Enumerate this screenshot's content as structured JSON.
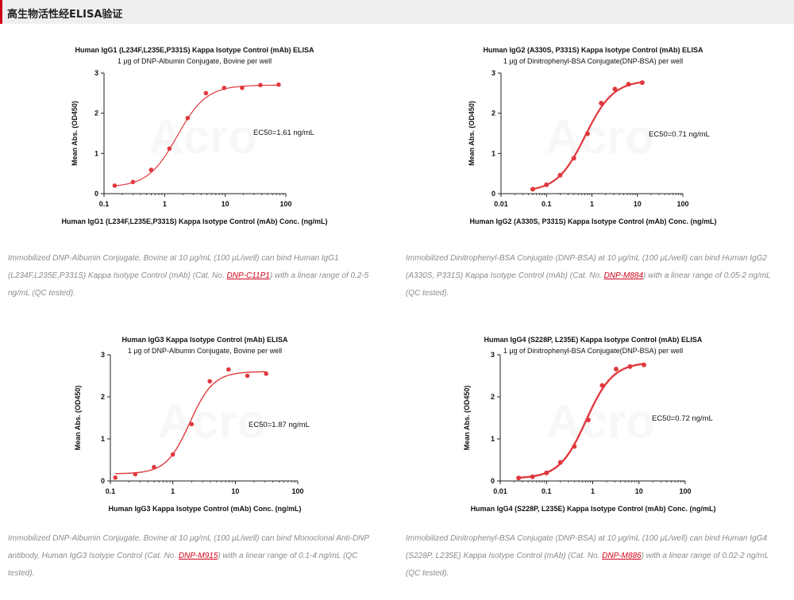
{
  "header": {
    "title": "高生物活性经ELISA验证"
  },
  "theme": {
    "accent": "#d0021b",
    "curve": "#e0393e",
    "axis": "#222222",
    "caption_text": "#8c8c8c",
    "link": "#d0021b"
  },
  "chart_data": [
    {
      "type": "scatter",
      "title": "Human IgG1 (L234F,L235E,P331S) Kappa Isotype Control (mAb) ELISA",
      "subtitle": "1 μg of DNP-Albumin Conjugate, Bovine per well",
      "xlabel": "Human IgG1 (L234F,L235E,P331S) Kappa Isotype Control (mAb) Conc. (ng/mL)",
      "ylabel": "Mean Abs. (OD450)",
      "x_scale": "log",
      "xlim": [
        0.1,
        100
      ],
      "ylim": [
        0,
        3
      ],
      "x_ticks": [
        "0.1",
        "1",
        "10",
        "100"
      ],
      "y_ticks": [
        "0",
        "1",
        "2",
        "3"
      ],
      "annotation": "EC50=1.61 ng/mL",
      "watermark": "Acro",
      "fit": {
        "bottom": 0.16,
        "top": 2.7,
        "ec50": 1.61,
        "hill": 1.8
      },
      "points": [
        {
          "x": 0.15,
          "y": 0.2
        },
        {
          "x": 0.3,
          "y": 0.29
        },
        {
          "x": 0.6,
          "y": 0.59
        },
        {
          "x": 1.2,
          "y": 1.12
        },
        {
          "x": 2.4,
          "y": 1.88
        },
        {
          "x": 4.8,
          "y": 2.5
        },
        {
          "x": 9.6,
          "y": 2.63
        },
        {
          "x": 19,
          "y": 2.63
        },
        {
          "x": 38,
          "y": 2.7
        },
        {
          "x": 76,
          "y": 2.71
        }
      ]
    },
    {
      "type": "scatter",
      "title": "Human IgG2 (A330S, P331S) Kappa Isotype Control (mAb) ELISA",
      "subtitle": "1 μg of Dinitrophenyl-BSA Conjugate(DNP-BSA) per well",
      "xlabel": "Human IgG2 (A330S, P331S) Kappa Isotype Control (mAb) Conc. (ng/mL)",
      "ylabel": "Mean Abs. (OD450)",
      "x_scale": "log",
      "xlim": [
        0.01,
        100
      ],
      "ylim": [
        0,
        3
      ],
      "x_ticks": [
        "0.01",
        "0.1",
        "1",
        "10",
        "100"
      ],
      "y_ticks": [
        "0",
        "1",
        "2",
        "3"
      ],
      "annotation": "EC50=0.71 ng/mL",
      "watermark": "Acro",
      "fit": {
        "bottom": 0.05,
        "top": 2.82,
        "ec50": 0.71,
        "hill": 1.4
      },
      "points": [
        {
          "x": 0.05,
          "y": 0.11
        },
        {
          "x": 0.1,
          "y": 0.22
        },
        {
          "x": 0.2,
          "y": 0.46
        },
        {
          "x": 0.4,
          "y": 0.88
        },
        {
          "x": 0.8,
          "y": 1.49
        },
        {
          "x": 1.6,
          "y": 2.25
        },
        {
          "x": 3.2,
          "y": 2.6
        },
        {
          "x": 6.4,
          "y": 2.72
        },
        {
          "x": 12.8,
          "y": 2.76
        }
      ]
    },
    {
      "type": "scatter",
      "title": "Human IgG3 Kappa Isotype Control (mAb) ELISA",
      "subtitle": "1 μg of DNP-Albumin Conjugate, Bovine per well",
      "xlabel": "Human IgG3 Kappa Isotype Control (mAb) Conc. (ng/mL)",
      "ylabel": "Mean Abs. (OD450)",
      "x_scale": "log",
      "xlim": [
        0.1,
        100
      ],
      "ylim": [
        0,
        3
      ],
      "x_ticks": [
        "0.1",
        "1",
        "10",
        "100"
      ],
      "y_ticks": [
        "0",
        "1",
        "2",
        "3"
      ],
      "annotation": "EC50=1.87 ng/mL",
      "watermark": "Acro",
      "fit": {
        "bottom": 0.17,
        "top": 2.6,
        "ec50": 1.87,
        "hill": 2.3
      },
      "points": [
        {
          "x": 0.12,
          "y": 0.08
        },
        {
          "x": 0.25,
          "y": 0.16
        },
        {
          "x": 0.5,
          "y": 0.33
        },
        {
          "x": 1.0,
          "y": 0.63
        },
        {
          "x": 2.0,
          "y": 1.35
        },
        {
          "x": 3.9,
          "y": 2.37
        },
        {
          "x": 7.8,
          "y": 2.65
        },
        {
          "x": 15.6,
          "y": 2.5
        },
        {
          "x": 31.2,
          "y": 2.55
        }
      ]
    },
    {
      "type": "scatter",
      "title": "Human IgG4 (S228P, L235E) Kappa Isotype Control (mAb) ELISA",
      "subtitle": "1 μg of Dinitrophenyl-BSA Conjugate(DNP-BSA) per well",
      "xlabel": "Human IgG4 (S228P, L235E) Kappa Isotype Control (mAb) Conc. (ng/mL)",
      "ylabel": "Mean Abs. (OD450)",
      "x_scale": "log",
      "xlim": [
        0.01,
        100
      ],
      "ylim": [
        0,
        3
      ],
      "x_ticks": [
        "0.01",
        "0.1",
        "1",
        "10",
        "100"
      ],
      "y_ticks": [
        "0",
        "1",
        "2",
        "3"
      ],
      "annotation": "EC50=0.72 ng/mL",
      "watermark": "Acro",
      "fit": {
        "bottom": 0.06,
        "top": 2.82,
        "ec50": 0.72,
        "hill": 1.5
      },
      "points": [
        {
          "x": 0.025,
          "y": 0.07
        },
        {
          "x": 0.05,
          "y": 0.1
        },
        {
          "x": 0.1,
          "y": 0.19
        },
        {
          "x": 0.2,
          "y": 0.44
        },
        {
          "x": 0.4,
          "y": 0.82
        },
        {
          "x": 0.8,
          "y": 1.45
        },
        {
          "x": 1.6,
          "y": 2.27
        },
        {
          "x": 3.2,
          "y": 2.66
        },
        {
          "x": 6.4,
          "y": 2.72
        },
        {
          "x": 12.8,
          "y": 2.76
        }
      ]
    }
  ],
  "captions": [
    {
      "before": "Immobilized DNP-Albumin Conjugate, Bovine at 10 μg/mL (100 μL/well) can bind Human IgG1 (L234F,L235E,P331S) Kappa Isotype Control (mAb) (Cat. No. ",
      "link": "DNP-C11P1",
      "after": ") with a linear range of 0.2-5 ng/mL (QC tested)."
    },
    {
      "before": "Immobilized Dinitrophenyl-BSA Conjugate (DNP-BSA) at 10 μg/mL (100 μL/well) can bind Human IgG2 (A330S, P331S) Kappa Isotype Control (mAb) (Cat. No. ",
      "link": "DNP-M884",
      "after": ") with a linear range of 0.05-2 ng/mL (QC tested)."
    },
    {
      "before": "Immobilized DNP-Albumin Conjugate, Bovine at 10 μg/mL (100 μL/well) can bind Monoclonal Anti-DNP antibody, Human IgG3 Isotype Control (Cat. No. ",
      "link": "DNP-M915",
      "after": ") with a linear range of 0.1-4 ng/mL (QC tested)."
    },
    {
      "before": "Immobilized Dinitrophenyl-BSA Conjugate (DNP-BSA) at 10 μg/mL (100 μL/well) can bind Human IgG4 (S228P, L235E) Kappa Isotype Control (mAb) (Cat. No. ",
      "link": "DNP-M886",
      "after": ") with a linear range of 0.02-2 ng/mL (QC tested)."
    }
  ]
}
